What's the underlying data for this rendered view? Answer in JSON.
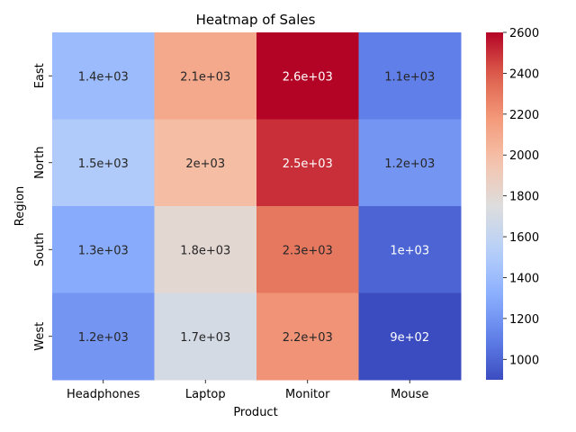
{
  "chart_data": {
    "type": "heatmap",
    "title": "Heatmap of Sales",
    "xlabel": "Product",
    "ylabel": "Region",
    "x_categories": [
      "Headphones",
      "Laptop",
      "Monitor",
      "Mouse"
    ],
    "y_categories": [
      "East",
      "North",
      "South",
      "West"
    ],
    "values": [
      [
        1400,
        2100,
        2600,
        1100
      ],
      [
        1500,
        2000,
        2500,
        1200
      ],
      [
        1300,
        1800,
        2300,
        1000
      ],
      [
        1200,
        1700,
        2200,
        900
      ]
    ],
    "cell_labels": [
      [
        "1.4e+03",
        "2.1e+03",
        "2.6e+03",
        "1.1e+03"
      ],
      [
        "1.5e+03",
        "2e+03",
        "2.5e+03",
        "1.2e+03"
      ],
      [
        "1.3e+03",
        "1.8e+03",
        "2.3e+03",
        "1e+03"
      ],
      [
        "1.2e+03",
        "1.7e+03",
        "2.2e+03",
        "9e+02"
      ]
    ],
    "colormap": "coolwarm",
    "vmin": 900,
    "vmax": 2600,
    "colorbar_ticks": [
      1000,
      1200,
      1400,
      1600,
      1800,
      2000,
      2200,
      2400,
      2600
    ]
  }
}
